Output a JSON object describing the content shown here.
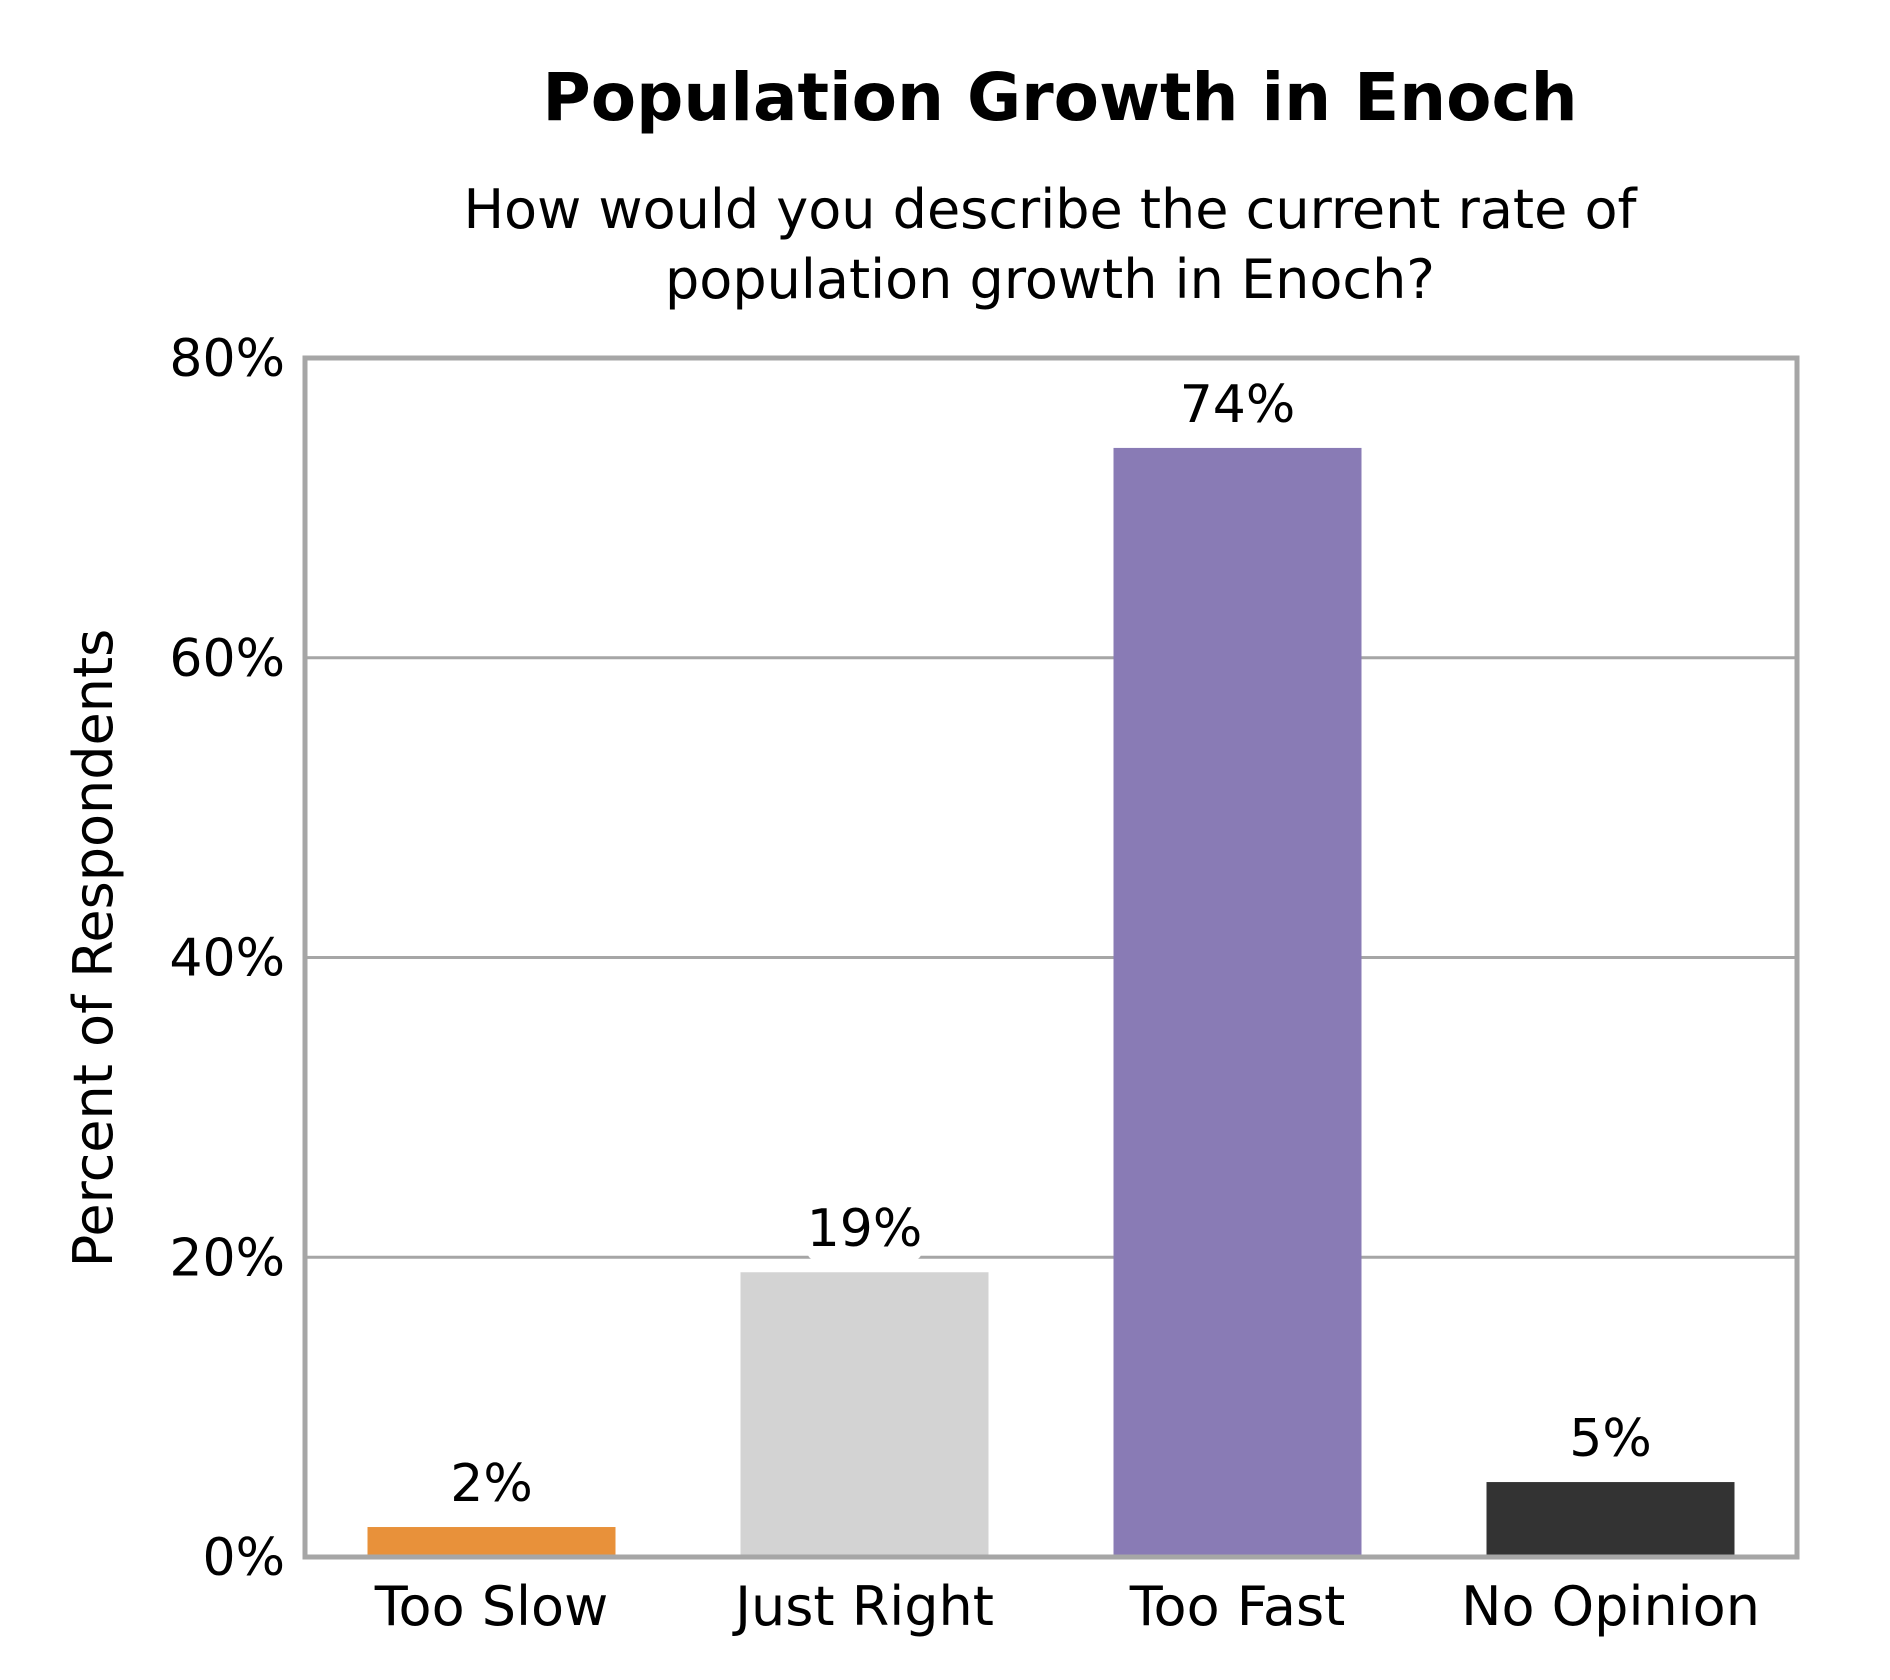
{
  "chart_data": {
    "type": "bar",
    "title": "Population Growth in Enoch",
    "subtitle_lines": [
      "How would you describe the current rate of",
      "population growth in Enoch?"
    ],
    "xlabel": "",
    "ylabel": "Percent of Respondents",
    "categories": [
      "Too Slow",
      "Just Right",
      "Too Fast",
      "No Opinion"
    ],
    "values": [
      2,
      19,
      74,
      5
    ],
    "data_labels": [
      "2%",
      "19%",
      "74%",
      "5%"
    ],
    "bar_colors": [
      "#E8913A",
      "#D3D3D3",
      "#897BB5",
      "#333333"
    ],
    "ylim": [
      0,
      80
    ],
    "yticks": [
      0,
      20,
      40,
      60,
      80
    ],
    "ytick_labels": [
      "0%",
      "20%",
      "40%",
      "60%",
      "80%"
    ],
    "grid": true,
    "frame_color": "#A6A6A6",
    "grid_color": "#A6A6A6",
    "legend": false
  }
}
